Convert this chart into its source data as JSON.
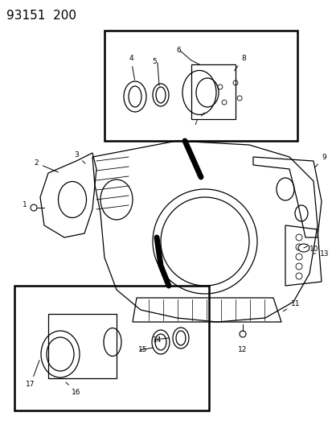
{
  "title": "93151  200",
  "bg_color": "#ffffff",
  "fig_width": 4.14,
  "fig_height": 5.33,
  "dpi": 100
}
